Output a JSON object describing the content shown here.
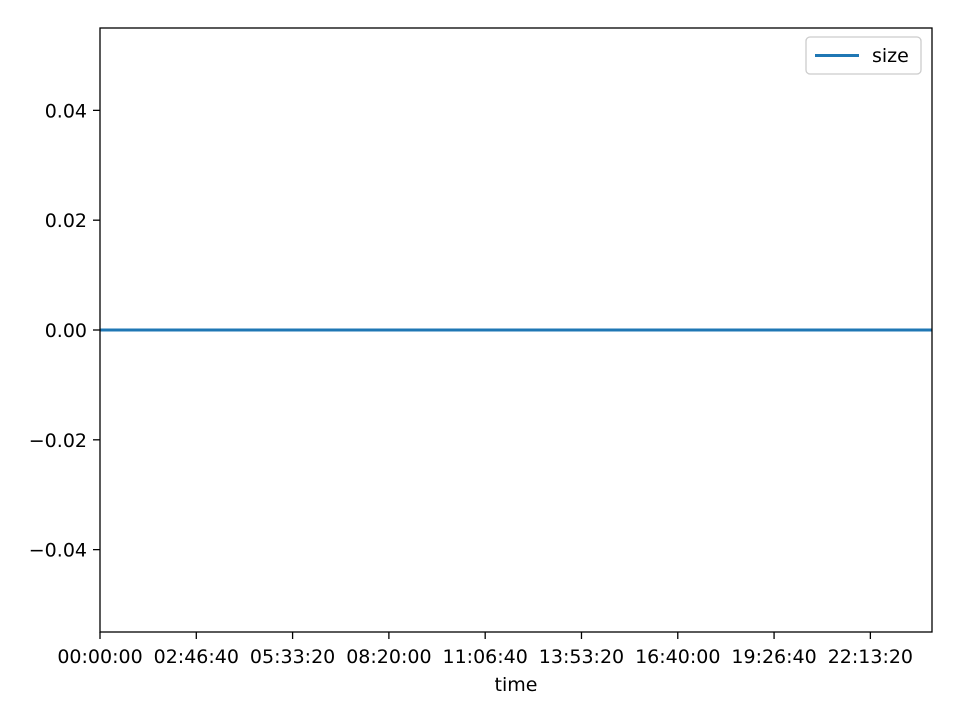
{
  "chart_data": {
    "type": "line",
    "xlabel": "time",
    "ylabel": "",
    "x_ticks": [
      "00:00:00",
      "02:46:40",
      "05:33:20",
      "08:20:00",
      "11:06:40",
      "13:53:20",
      "16:40:00",
      "19:26:40",
      "22:13:20"
    ],
    "x_tick_seconds": [
      0,
      10000,
      20000,
      30000,
      40000,
      50000,
      60000,
      70000,
      80000
    ],
    "xlim_seconds": [
      0,
      86400
    ],
    "ylim": [
      -0.055,
      0.055
    ],
    "y_ticks": [
      0.04,
      0.02,
      0.0,
      -0.02,
      -0.04
    ],
    "y_tick_labels": [
      "0.04",
      "0.02",
      "0.00",
      "−0.02",
      "−0.04"
    ],
    "grid": false,
    "legend_position": "top-right",
    "series": [
      {
        "name": "size",
        "color": "#1f77b4",
        "x_seconds": [
          0,
          86400
        ],
        "values": [
          0,
          0
        ]
      }
    ]
  }
}
